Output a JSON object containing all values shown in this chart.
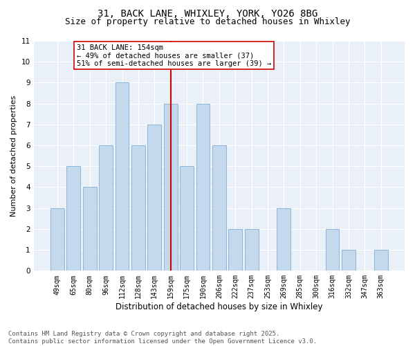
{
  "title1": "31, BACK LANE, WHIXLEY, YORK, YO26 8BG",
  "title2": "Size of property relative to detached houses in Whixley",
  "xlabel": "Distribution of detached houses by size in Whixley",
  "ylabel": "Number of detached properties",
  "categories": [
    "49sqm",
    "65sqm",
    "80sqm",
    "96sqm",
    "112sqm",
    "128sqm",
    "143sqm",
    "159sqm",
    "175sqm",
    "190sqm",
    "206sqm",
    "222sqm",
    "237sqm",
    "253sqm",
    "269sqm",
    "285sqm",
    "300sqm",
    "316sqm",
    "332sqm",
    "347sqm",
    "363sqm"
  ],
  "values": [
    3,
    5,
    4,
    6,
    9,
    6,
    7,
    8,
    5,
    8,
    6,
    2,
    2,
    0,
    3,
    0,
    0,
    2,
    1,
    0,
    1
  ],
  "bar_color": "#c5d9ed",
  "bar_edge_color": "#7aaed6",
  "vline_index": 7,
  "vline_color": "#cc0000",
  "annotation_text": "31 BACK LANE: 154sqm\n← 49% of detached houses are smaller (37)\n51% of semi-detached houses are larger (39) →",
  "annotation_box_color": "#ffffff",
  "annotation_box_edge_color": "#cc0000",
  "ylim": [
    0,
    11
  ],
  "yticks": [
    0,
    1,
    2,
    3,
    4,
    5,
    6,
    7,
    8,
    9,
    10,
    11
  ],
  "background_color": "#eaf0f7",
  "grid_color": "#ffffff",
  "footer_text": "Contains HM Land Registry data © Crown copyright and database right 2025.\nContains public sector information licensed under the Open Government Licence v3.0.",
  "title_fontsize": 10,
  "subtitle_fontsize": 9,
  "axis_label_fontsize": 8,
  "tick_fontsize": 7,
  "annotation_fontsize": 7.5,
  "footer_fontsize": 6.5
}
